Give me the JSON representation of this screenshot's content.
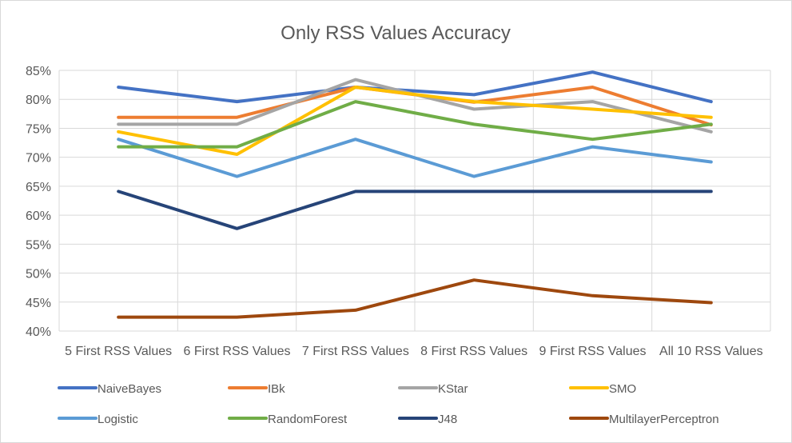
{
  "chart_data": {
    "type": "line",
    "title": "Only RSS Values Accuracy",
    "xlabel": "",
    "ylabel": "",
    "categories": [
      "5 First RSS Values",
      "6 First RSS Values",
      "7 First RSS Values",
      "8 First RSS Values",
      "9 First RSS Values",
      "All 10 RSS Values"
    ],
    "y_ticks": [
      "40%",
      "45%",
      "50%",
      "55%",
      "60%",
      "65%",
      "70%",
      "75%",
      "80%",
      "85%"
    ],
    "ylim": [
      40,
      85
    ],
    "y_unit": "%",
    "grid": true,
    "legend_position": "bottom",
    "series": [
      {
        "name": "NaiveBayes",
        "color": "#4472C4",
        "values": [
          82.1,
          79.6,
          82.1,
          80.8,
          84.7,
          79.6
        ]
      },
      {
        "name": "IBk",
        "color": "#ED7D31",
        "values": [
          76.9,
          76.9,
          82.1,
          79.5,
          82.1,
          75.6
        ]
      },
      {
        "name": "KStar",
        "color": "#A5A5A5",
        "values": [
          75.7,
          75.7,
          83.4,
          78.3,
          79.6,
          74.4
        ]
      },
      {
        "name": "SMO",
        "color": "#FFC000",
        "values": [
          74.4,
          70.5,
          82.1,
          79.6,
          78.3,
          76.9
        ]
      },
      {
        "name": "Logistic",
        "color": "#5B9BD5",
        "values": [
          73.1,
          66.7,
          73.1,
          66.7,
          71.8,
          69.2
        ]
      },
      {
        "name": "RandomForest",
        "color": "#70AD47",
        "values": [
          71.8,
          71.8,
          79.6,
          75.7,
          73.1,
          75.7
        ]
      },
      {
        "name": "J48",
        "color": "#264478",
        "values": [
          64.1,
          57.7,
          64.1,
          64.1,
          64.1,
          64.1
        ]
      },
      {
        "name": "MultilayerPerceptron",
        "color": "#9E480E",
        "values": [
          42.4,
          42.4,
          43.6,
          48.8,
          46.1,
          44.9
        ]
      }
    ]
  }
}
